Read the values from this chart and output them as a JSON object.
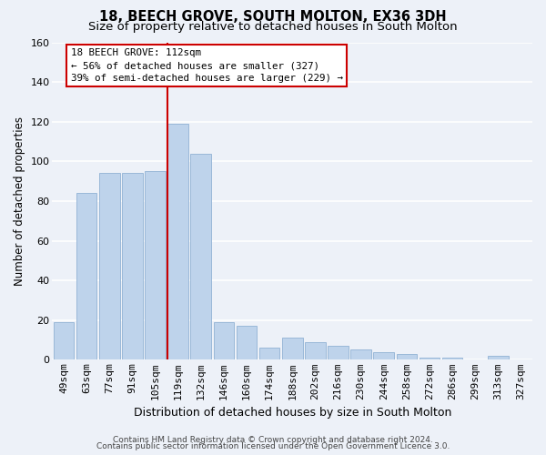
{
  "title": "18, BEECH GROVE, SOUTH MOLTON, EX36 3DH",
  "subtitle": "Size of property relative to detached houses in South Molton",
  "xlabel": "Distribution of detached houses by size in South Molton",
  "ylabel": "Number of detached properties",
  "bar_labels": [
    "49sqm",
    "63sqm",
    "77sqm",
    "91sqm",
    "105sqm",
    "119sqm",
    "132sqm",
    "146sqm",
    "160sqm",
    "174sqm",
    "188sqm",
    "202sqm",
    "216sqm",
    "230sqm",
    "244sqm",
    "258sqm",
    "272sqm",
    "286sqm",
    "299sqm",
    "313sqm",
    "327sqm"
  ],
  "bar_values": [
    19,
    84,
    94,
    94,
    95,
    119,
    104,
    19,
    17,
    6,
    11,
    9,
    7,
    5,
    4,
    3,
    1,
    1,
    0,
    2,
    0
  ],
  "bar_color": "#bed3eb",
  "bar_edge_color": "#9ab8d8",
  "vline_color": "#cc0000",
  "vline_x_index": 5,
  "annotation_title": "18 BEECH GROVE: 112sqm",
  "annotation_line1": "← 56% of detached houses are smaller (327)",
  "annotation_line2": "39% of semi-detached houses are larger (229) →",
  "annotation_box_color": "#ffffff",
  "annotation_box_edge": "#cc0000",
  "ylim": [
    0,
    160
  ],
  "yticks": [
    0,
    20,
    40,
    60,
    80,
    100,
    120,
    140,
    160
  ],
  "footer1": "Contains HM Land Registry data © Crown copyright and database right 2024.",
  "footer2": "Contains public sector information licensed under the Open Government Licence 3.0.",
  "bg_color": "#edf1f8",
  "plot_bg_color": "#edf1f8",
  "grid_color": "#ffffff",
  "title_fontsize": 10.5,
  "subtitle_fontsize": 9.5,
  "xlabel_fontsize": 9,
  "ylabel_fontsize": 8.5,
  "tick_fontsize": 8,
  "footer_fontsize": 6.5
}
